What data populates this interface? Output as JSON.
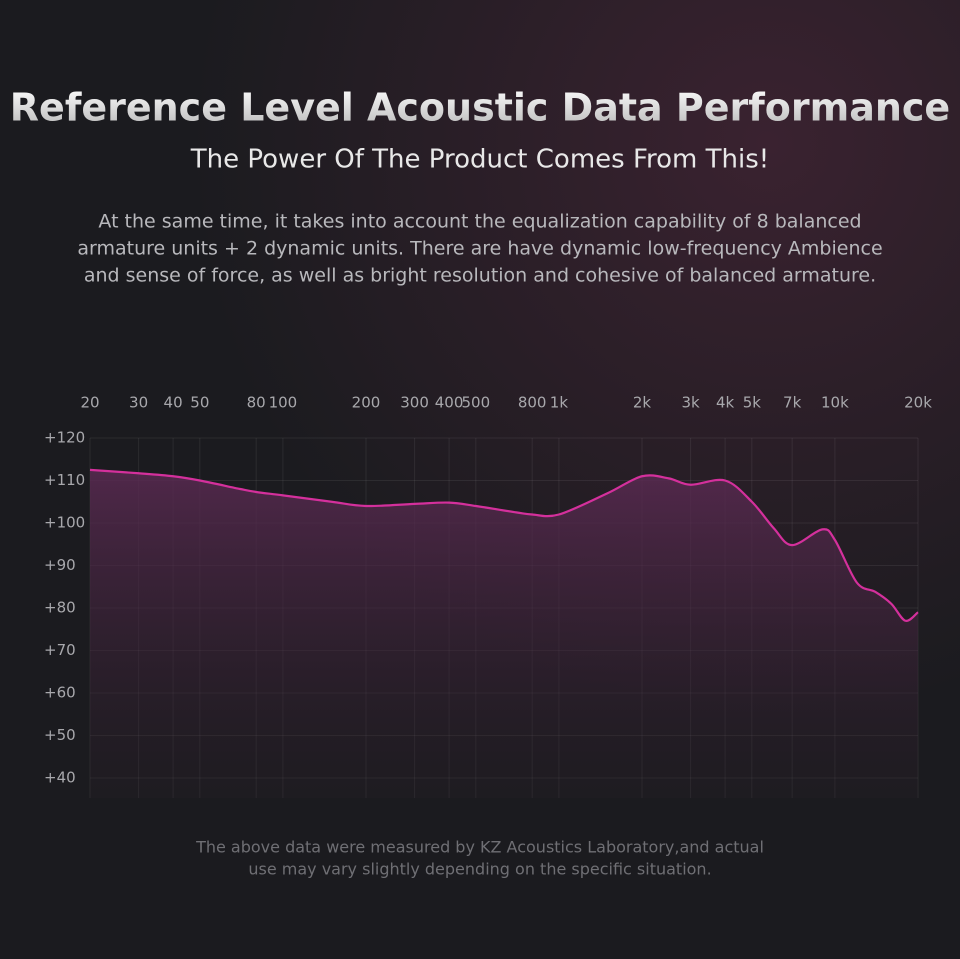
{
  "header": {
    "title": "Reference Level Acoustic Data Performance",
    "subtitle": "The Power Of The Product Comes From This!",
    "description": [
      "At the same time, it takes into account the equalization capability of 8 balanced",
      "armature units + 2 dynamic units. There are have dynamic low-frequency Ambience",
      "and sense of force, as well as bright resolution and cohesive of balanced armature."
    ]
  },
  "chart_data": {
    "type": "line",
    "xscale": "log",
    "grid": true,
    "xlim": [
      20,
      20000
    ],
    "ylim": [
      40,
      120
    ],
    "xticks": [
      20,
      30,
      40,
      50,
      80,
      100,
      200,
      300,
      400,
      500,
      800,
      {
        "value": 1000,
        "label": "1k"
      },
      {
        "value": 2000,
        "label": "2k"
      },
      {
        "value": 3000,
        "label": "3k"
      },
      {
        "value": 4000,
        "label": "4k"
      },
      {
        "value": 5000,
        "label": "5k"
      },
      {
        "value": 7000,
        "label": "7k"
      },
      {
        "value": 10000,
        "label": "10k"
      },
      {
        "value": 20000,
        "label": "20k"
      }
    ],
    "yticks": [
      {
        "value": 120,
        "label": "+120"
      },
      {
        "value": 110,
        "label": "+110"
      },
      {
        "value": 100,
        "label": "+100"
      },
      {
        "value": 90,
        "label": "+90"
      },
      {
        "value": 80,
        "label": "+80"
      },
      {
        "value": 70,
        "label": "+70"
      },
      {
        "value": 60,
        "label": "+60"
      },
      {
        "value": 50,
        "label": "+50"
      },
      {
        "value": 40,
        "label": "+40"
      }
    ],
    "x": [
      20,
      30,
      40,
      50,
      70,
      80,
      100,
      150,
      200,
      300,
      400,
      500,
      700,
      800,
      1000,
      1500,
      2000,
      2500,
      3000,
      4000,
      5000,
      6000,
      7000,
      9000,
      10000,
      12000,
      14000,
      16000,
      18000,
      20000
    ],
    "series": [
      {
        "color": "#d4309c",
        "values": [
          112.5,
          111.7,
          111,
          110,
          108,
          107.3,
          106.5,
          105,
          104,
          104.5,
          104.8,
          104,
          102.5,
          102,
          102,
          107,
          111,
          110.5,
          109,
          110,
          105,
          98.8,
          94.8,
          98.5,
          96,
          86,
          83.8,
          81,
          77,
          79
        ]
      }
    ]
  },
  "footnote": [
    "The above data were measured by KZ Acoustics Laboratory,and actual",
    "use may vary slightly depending on the specific situation."
  ]
}
